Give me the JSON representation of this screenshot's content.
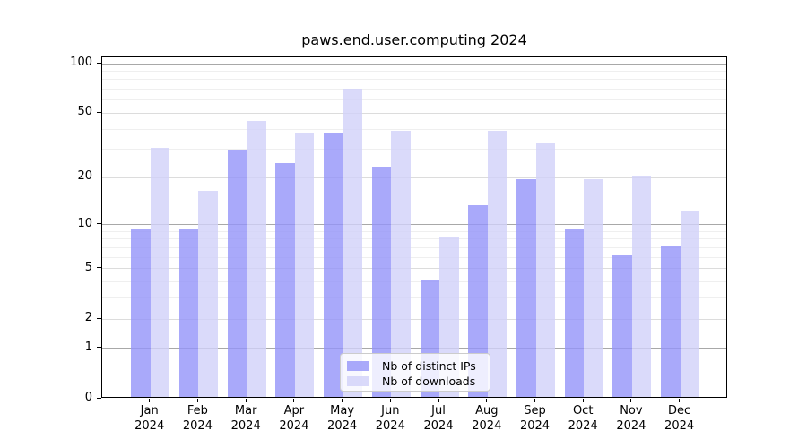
{
  "chart_data": {
    "type": "bar",
    "title": "paws.end.user.computing 2024",
    "categories": [
      "Jan",
      "Feb",
      "Mar",
      "Apr",
      "May",
      "Jun",
      "Jul",
      "Aug",
      "Sep",
      "Oct",
      "Nov",
      "Dec"
    ],
    "x_year_label": "2024",
    "series": [
      {
        "name": "Nb of distinct IPs",
        "color": "rgba(148,148,249,0.8)",
        "values": [
          9,
          9,
          29,
          24,
          37,
          23,
          4,
          13,
          19,
          9,
          6,
          7
        ]
      },
      {
        "name": "Nb of downloads",
        "color": "rgba(209,209,249,0.8)",
        "values": [
          30,
          16,
          44,
          37,
          69,
          38,
          8,
          38,
          32,
          19,
          20,
          12
        ]
      }
    ],
    "y_axis": {
      "scale": "log1p",
      "ticks": [
        0,
        1,
        2,
        5,
        10,
        20,
        50,
        100
      ],
      "decade_gridlines": [
        1,
        10,
        100
      ],
      "minor_gridlines": [
        3,
        4,
        6,
        7,
        8,
        9,
        30,
        40,
        60,
        70,
        80,
        90
      ],
      "max": 109
    },
    "grid": true,
    "legend_position": "lower center inside",
    "colors": {
      "background": "#ffffff",
      "spine": "#000000",
      "grid_decade": "#a8a8a8",
      "grid_major": "#dcdcdc",
      "grid_minor": "#efefef"
    }
  }
}
